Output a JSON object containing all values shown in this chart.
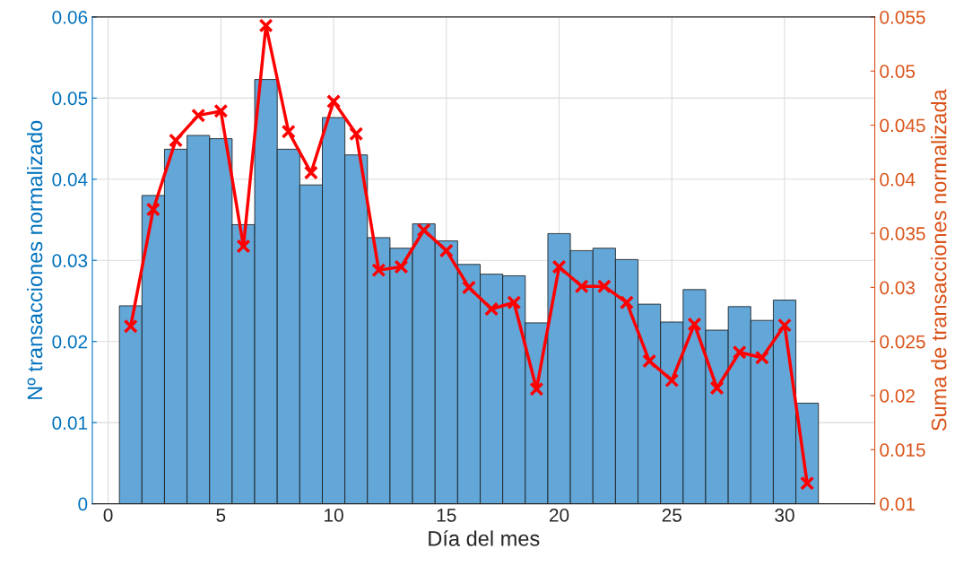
{
  "chart_data": {
    "type": "histogram",
    "xlabel": "Día del mes",
    "ylabel": "Nº transacciones normalizado",
    "y2label": "Suma de transacciones normalizada",
    "series": [
      {
        "color": "#62a7d8",
        "bins": [
          0.5,
          1.5,
          2.5,
          3.5,
          4.5,
          5.5,
          6.5,
          7.5,
          8.5,
          9.5,
          10.5,
          11.5,
          12.5,
          13.5,
          14.5,
          15.5,
          16.5,
          17.5,
          18.5,
          19.5,
          20.5,
          21.5,
          22.5,
          23.5,
          24.5,
          25.5,
          26.5,
          27.5,
          28.5,
          29.5,
          30.5,
          31.5
        ],
        "values": [
          0.0244,
          0.038,
          0.0437,
          0.0454,
          0.045,
          0.0344,
          0.0523,
          0.0437,
          0.0393,
          0.0476,
          0.043,
          0.0328,
          0.0315,
          0.0345,
          0.0324,
          0.0295,
          0.0283,
          0.0281,
          0.0223,
          0.0333,
          0.0312,
          0.0315,
          0.0301,
          0.0246,
          0.0224,
          0.0264,
          0.0214,
          0.0243,
          0.0226,
          0.0251,
          0.0124
        ]
      },
      {
        "type": "line",
        "axis": "y2",
        "color": "#ff0000",
        "marker": "cross",
        "x": [
          1,
          2,
          3,
          4,
          5,
          6,
          7,
          8,
          9,
          10,
          11,
          12,
          13,
          14,
          15,
          16,
          17,
          18,
          19,
          20,
          21,
          22,
          23,
          24,
          25,
          26,
          27,
          28,
          29,
          30,
          31
        ],
        "values": [
          0.0264,
          0.0372,
          0.0436,
          0.0459,
          0.0463,
          0.0338,
          0.0542,
          0.0444,
          0.0406,
          0.0472,
          0.0442,
          0.0316,
          0.0319,
          0.0353,
          0.0334,
          0.03,
          0.028,
          0.0286,
          0.0206,
          0.0319,
          0.0301,
          0.0301,
          0.0286,
          0.0232,
          0.0214,
          0.0266,
          0.0207,
          0.024,
          0.0235,
          0.0265,
          0.0119
        ]
      }
    ],
    "xlim": [
      -0.7,
      34
    ],
    "xticks": [
      0,
      5,
      10,
      15,
      20,
      25,
      30
    ],
    "ylim": [
      0,
      0.06
    ],
    "yticks": [
      0,
      0.01,
      0.02,
      0.03,
      0.04,
      0.05,
      0.06
    ],
    "y2lim": [
      0.01,
      0.055
    ],
    "y2ticks": [
      0.01,
      0.015,
      0.02,
      0.025,
      0.03,
      0.035,
      0.04,
      0.045,
      0.05,
      0.055
    ],
    "grid": true
  }
}
